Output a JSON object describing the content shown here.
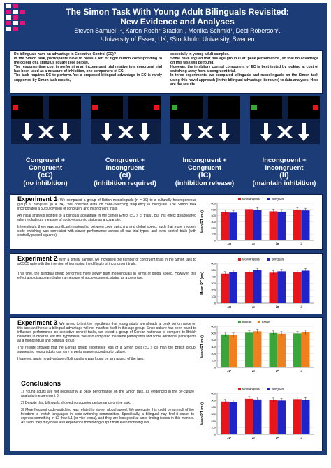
{
  "header": {
    "title_line1": "The Simon Task With Young Adult Bilinguals Revisited:",
    "title_line2": "New Evidence and Analyses",
    "authors": "Steven Samuel¹˒², Karen Roehr-Brackin¹, Monika Schmid¹, Debi Roberson¹.",
    "affiliations": "¹University of Essex, UK; ²Stockholm University, Sweden"
  },
  "intro": {
    "left": [
      "Do bilinguals have an advantage in Executive Control (EC)?",
      "In the Simon task, participants have to press a left or right button corresponding to the colour of a stimulus square (see below).",
      "The response time cost in performing an incongruent trial relative to a congruent trial has been used as a measure of inhibition, one component of EC.",
      "The task requires EC to perform. Yet a proposed bilingual advantage in EC is rarely supported by Simon task results,"
    ],
    "right": [
      "especially in young adult samples.",
      "Some have argued that this age group is at ‘peak performance’, so that no advantage on this task will be found.",
      "However, the inhibitory control component of EC is best tested by looking at cost of switching away from a congruent trial.",
      "In three experiments, we compared bilinguals and monolinguals on the Simon task using this novel approach (in the bilingual advantage literature) to data analyses. Here are the results."
    ]
  },
  "conditions": [
    {
      "line1": "Congruent +",
      "line2": "Congruent",
      "code": "(cC)",
      "desc": "(no inhibition)"
    },
    {
      "line1": "Congruent +",
      "line2": "Incongruent",
      "code": "(cI)",
      "desc": "(inhibition required)"
    },
    {
      "line1": "Incongruent +",
      "line2": "Congruent",
      "code": "(iC)",
      "desc": "(inhibition release)"
    },
    {
      "line1": "Incongruent +",
      "line2": "Incongruent",
      "code": "(iI)",
      "desc": "(maintain inhibition)"
    }
  ],
  "colors": {
    "background": "#1c3c78",
    "monolinguals": "#e8151b",
    "bilinguals": "#1f24c8",
    "korean": "#3aa63a",
    "british": "#f07f1e"
  },
  "experiments": [
    {
      "heading": "Experiment 1",
      "paragraphs": [
        ": We compared a group of British monolinguals (n = 30) to a culturally heterogeneous group of bilinguals (n = 34). We collected data on code-switching frequency in bilinguals. The Simon task incorporated a 50/50 division of congruent and incongruent trials.",
        "An initial analysis pointed to a bilingual advantage in the Simon Effect (cC > cI trials), but this effect disappeared when including a measure of socio-economic status as a covariate.",
        "Interestingly, there was significant relationship between code switching and global speed, such that more frequent code switching was correlated with slower performance across all four trial types, and even control trials (with centrally-placed squares)."
      ]
    },
    {
      "heading": "Experiment 2",
      "paragraphs": [
        ": With a similar sample, we increased the number of congruent trials in the Simon task to a 65/35 ratio with the intention of increasing the difficulty of incongruent trials.",
        "This time, the bilingual group performed more slowly than monolinguals in terms of global speed. However, this effect also disappeared when a measure of socio-economic status as a covariate."
      ]
    },
    {
      "heading": "Experiment 3",
      "paragraphs": [
        ": We aimed to test the hypothesis that young adults are already at peak performance on this task and hence a bilingual advantage will not manifest itself in this age group. Since culture has been found to influence performance on executive control tasks, we tested a group of Korean nationals to compare to British nationals in order to test this hypothesis. We also compared the same participants and some additional participants as a monolingual and bilingual group.",
        "The results showed that the Korean group experience less of a Simon cost (cC > cI) than the British group, suggesting young adults can vary in performance according to culture.",
        "However, again no advantage of bilingualism was found on any aspect of the task."
      ]
    }
  ],
  "conclusions": {
    "heading": "Conclusions",
    "items": [
      "1)  Young adults are not necessarily at peak performance on the Simon task, as evidenced in the by-culture analysis in experiment 3.",
      "2)  Despite this, bilinguals showed no superior performance on the task.",
      "3)  More frequent code-switching was related to slower global speed. We speculate this could be a result of the freedom to switch languages in code-switching communities. Specifically, a bilingual may find it easier to express something in L2 than L1 (or vice-versa), and they are less good at word-finding issues in this manner. As such, they may have less experience monitoring output than even monolinguals."
    ]
  },
  "chart_data": [
    {
      "type": "bar",
      "categories": [
        "cC",
        "cI",
        "iC",
        "iI"
      ],
      "ylabel": "Mean RT (ms)",
      "ylim": [
        0,
        600
      ],
      "yticks": [
        0,
        100,
        200,
        300,
        400,
        500,
        600
      ],
      "series": [
        {
          "name": "Monolinguals",
          "values": [
            455,
            505,
            470,
            495
          ]
        },
        {
          "name": "Bilinguals",
          "values": [
            450,
            495,
            465,
            485
          ]
        }
      ]
    },
    {
      "type": "bar",
      "categories": [
        "cC",
        "cI",
        "iC",
        "iI"
      ],
      "ylabel": "Mean RT (ms)",
      "ylim": [
        0,
        600
      ],
      "yticks": [
        0,
        100,
        200,
        300,
        400,
        500,
        600
      ],
      "series": [
        {
          "name": "Monolinguals",
          "values": [
            445,
            470,
            460,
            465
          ]
        },
        {
          "name": "Bilinguals",
          "values": [
            465,
            495,
            480,
            490
          ]
        }
      ]
    },
    {
      "type": "bar",
      "categories": [
        "cC",
        "cI",
        "iC",
        "iI"
      ],
      "ylabel": "Mean RT (ms)",
      "ylim": [
        0,
        600
      ],
      "yticks": [
        0,
        100,
        200,
        300,
        400,
        500,
        600
      ],
      "series": [
        {
          "name": "Korean",
          "values": [
            480,
            505,
            500,
            495
          ]
        },
        {
          "name": "British",
          "values": [
            470,
            525,
            490,
            510
          ]
        }
      ]
    },
    {
      "type": "bar",
      "categories": [
        "cC",
        "cI",
        "iC",
        "iI"
      ],
      "ylabel": "Mean RT (ms)",
      "ylim": [
        0,
        600
      ],
      "yticks": [
        0,
        100,
        200,
        300,
        400,
        500,
        600
      ],
      "series": [
        {
          "name": "Monolinguals",
          "values": [
            480,
            520,
            500,
            515
          ]
        },
        {
          "name": "Bilinguals",
          "values": [
            475,
            510,
            495,
            505
          ]
        }
      ]
    }
  ]
}
